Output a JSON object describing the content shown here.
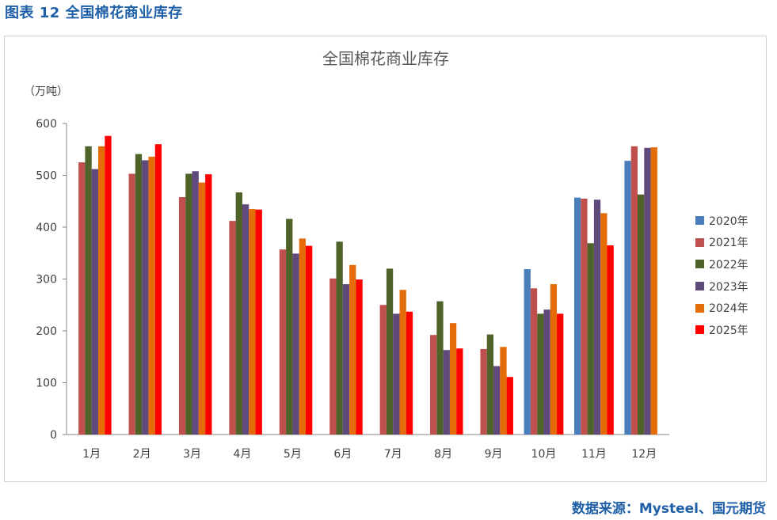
{
  "figure_caption": "图表 12  全国棉花商业库存",
  "source": "数据来源：Mysteel、国元期货",
  "chart_data": {
    "type": "bar",
    "title": "全国棉花商业库存",
    "ylabel": "（万吨）",
    "xlabel": "",
    "ylim": [
      0,
      600
    ],
    "yticks": [
      0,
      100,
      200,
      300,
      400,
      500,
      600
    ],
    "grid": false,
    "legend_position": "right",
    "categories": [
      "1月",
      "2月",
      "3月",
      "4月",
      "5月",
      "6月",
      "7月",
      "8月",
      "9月",
      "10月",
      "11月",
      "12月"
    ],
    "series": [
      {
        "name": "2020年",
        "color": "#4a7ebb",
        "values": [
          null,
          null,
          null,
          null,
          null,
          null,
          null,
          null,
          null,
          319,
          457,
          528
        ]
      },
      {
        "name": "2021年",
        "color": "#c0504d",
        "values": [
          525,
          503,
          458,
          412,
          357,
          301,
          250,
          192,
          165,
          282,
          455,
          556
        ]
      },
      {
        "name": "2022年",
        "color": "#4f6228",
        "values": [
          556,
          541,
          503,
          467,
          416,
          372,
          320,
          257,
          193,
          233,
          369,
          463
        ]
      },
      {
        "name": "2023年",
        "color": "#604a7b",
        "values": [
          512,
          529,
          508,
          444,
          349,
          290,
          233,
          163,
          132,
          241,
          453,
          553
        ]
      },
      {
        "name": "2024年",
        "color": "#e36c09",
        "values": [
          556,
          536,
          486,
          435,
          378,
          327,
          279,
          215,
          169,
          290,
          427,
          554
        ]
      },
      {
        "name": "2025年",
        "color": "#ff0000",
        "values": [
          576,
          560,
          502,
          434,
          364,
          299,
          237,
          166,
          111,
          233,
          365,
          null
        ]
      }
    ]
  }
}
